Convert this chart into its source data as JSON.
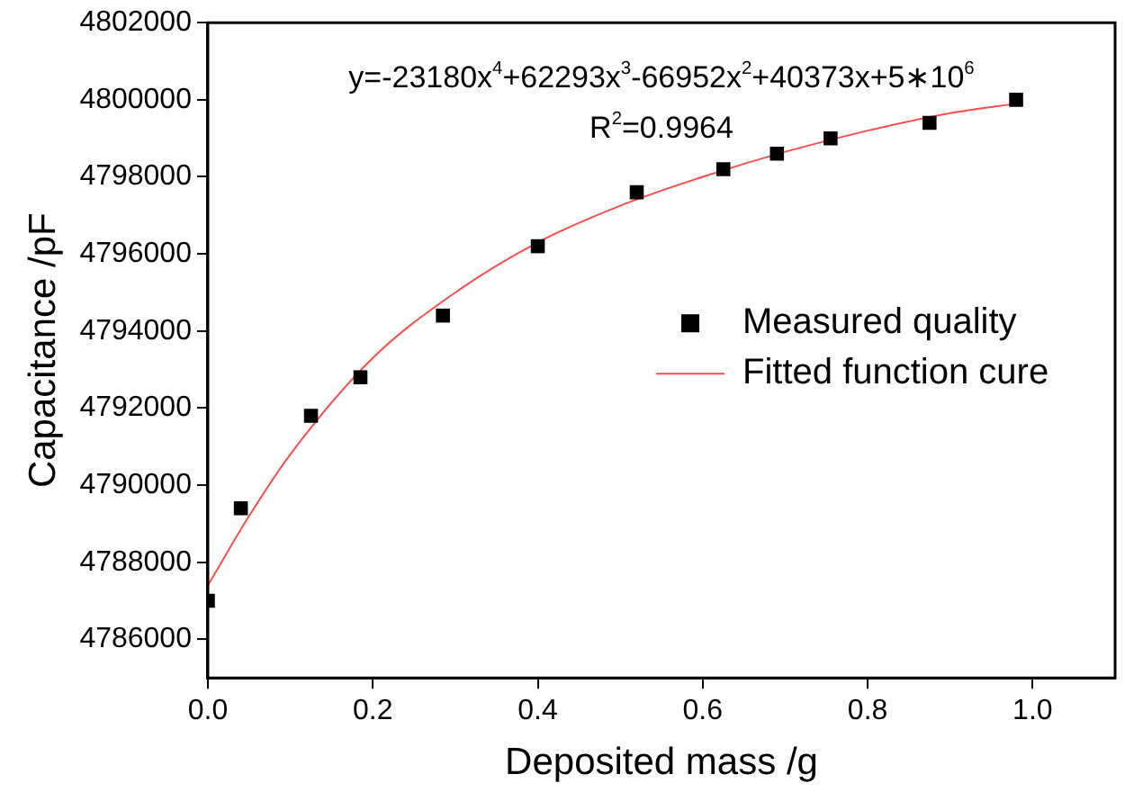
{
  "chart_data": {
    "type": "scatter",
    "xlabel": "Deposited mass /g",
    "ylabel": "Capacitance /pF",
    "series": [
      {
        "name": "Measured quality",
        "color": "#000000",
        "marker": "square",
        "x": [
          0,
          0.04,
          0.125,
          0.185,
          0.285,
          0.4,
          0.52,
          0.625,
          0.69,
          0.755,
          0.875,
          0.98
        ],
        "values": [
          4787000,
          4789400,
          4791800,
          4792800,
          4794400,
          4796200,
          4797600,
          4798200,
          4798600,
          4799000,
          4799400,
          4800000
        ]
      },
      {
        "name": "Fitted function cure",
        "type": "line",
        "color": "#ff4d4d",
        "line_style": "solid",
        "x": [
          0,
          0.05,
          0.1,
          0.2,
          0.3,
          0.4,
          0.5,
          0.6,
          0.7,
          0.8,
          0.9,
          0.98
        ],
        "values": [
          4787400,
          4789200,
          4790800,
          4793300,
          4795000,
          4796300,
          4797250,
          4798000,
          4798650,
          4799200,
          4799650,
          4799900
        ]
      }
    ],
    "xlim": [
      0,
      1.1
    ],
    "xticks": [
      {
        "value": 0,
        "label": "0.0"
      },
      0.2,
      0.4,
      0.6,
      0.8,
      {
        "value": 1,
        "label": "1.0"
      }
    ],
    "ylim": [
      4785000,
      4802000
    ],
    "yticks": [
      4786000,
      4788000,
      4790000,
      4792000,
      4794000,
      4796000,
      4798000,
      4800000,
      4802000
    ],
    "legend": "right",
    "grid": false,
    "annotations": [
      "y=-23180x$^{4}$+62293x$^{3}$-66952x$^{2}$+40373x+5∗10$^{6}$",
      "R$^{2}$=0.9964"
    ]
  }
}
